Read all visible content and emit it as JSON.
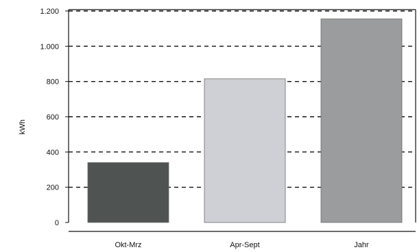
{
  "chart_data": {
    "type": "bar",
    "title": "",
    "xlabel": "",
    "ylabel": "kWh",
    "ylim": [
      0,
      1200
    ],
    "yticks": [
      0,
      200,
      400,
      600,
      800,
      1000,
      1200
    ],
    "ytick_labels": [
      "0",
      "200",
      "400",
      "600",
      "800",
      "1.000",
      "1.200"
    ],
    "grid": "horizontal dashed",
    "categories": [
      "Okt-Mrz",
      "Apr-Sept",
      "Jahr"
    ],
    "values": [
      340,
      815,
      1155
    ],
    "colors": [
      "#4f5452",
      "#cfd0d6",
      "#9b9c9e"
    ]
  }
}
